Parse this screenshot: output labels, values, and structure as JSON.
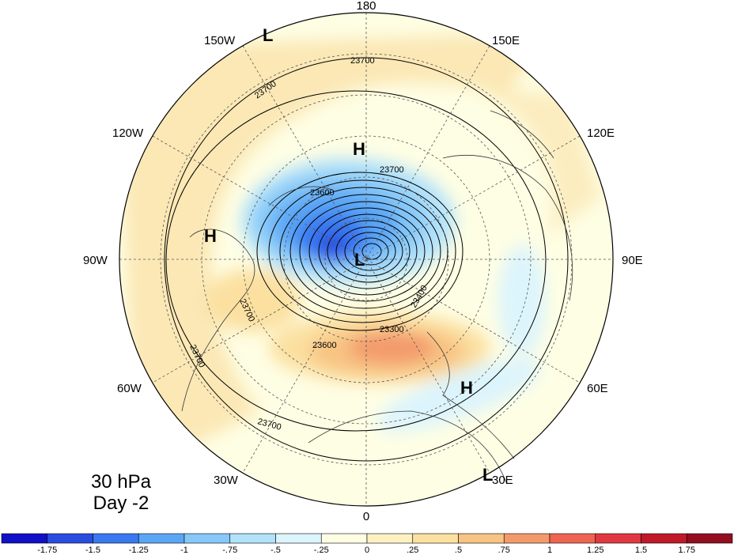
{
  "panel": {
    "level": "30 hPa",
    "day": "Day -2"
  },
  "longitude_labels": {
    "lon_180": "180",
    "lon_150e": "150E",
    "lon_120e": "120E",
    "lon_90e": "90E",
    "lon_60e": "60E",
    "lon_30e": "30E",
    "lon_0": "0",
    "lon_30w": "30W",
    "lon_60w": "60W",
    "lon_90w": "90W",
    "lon_120w": "120W",
    "lon_150w": "150W"
  },
  "contour_labels": {
    "c1": "23700",
    "c2": "23700",
    "c3": "23700",
    "c4": "23600",
    "c5": "23700",
    "c6": "23700",
    "c7": "23700",
    "c8": "23600",
    "c9": "23400",
    "c10": "23300"
  },
  "centers": {
    "h1": "H",
    "h2": "H",
    "h3": "H",
    "l1": "L",
    "l2": "L",
    "l3": "L"
  },
  "colorbar": {
    "levels": [
      "-1.75",
      "-1.5",
      "-1.25",
      "-1",
      "-.75",
      "-.5",
      "-.25",
      "0",
      ".25",
      ".5",
      ".75",
      "1",
      "1.25",
      "1.5",
      "1.75"
    ],
    "colors": [
      "#1010c8",
      "#2a4de0",
      "#3a78f0",
      "#5aa6f5",
      "#86c8f8",
      "#b2e2fa",
      "#dcf4fc",
      "#fefee4",
      "#fdf1c2",
      "#fbe0a0",
      "#f8c484",
      "#f39a6c",
      "#ee6451",
      "#e03840",
      "#c01a28",
      "#920e1e"
    ]
  }
}
